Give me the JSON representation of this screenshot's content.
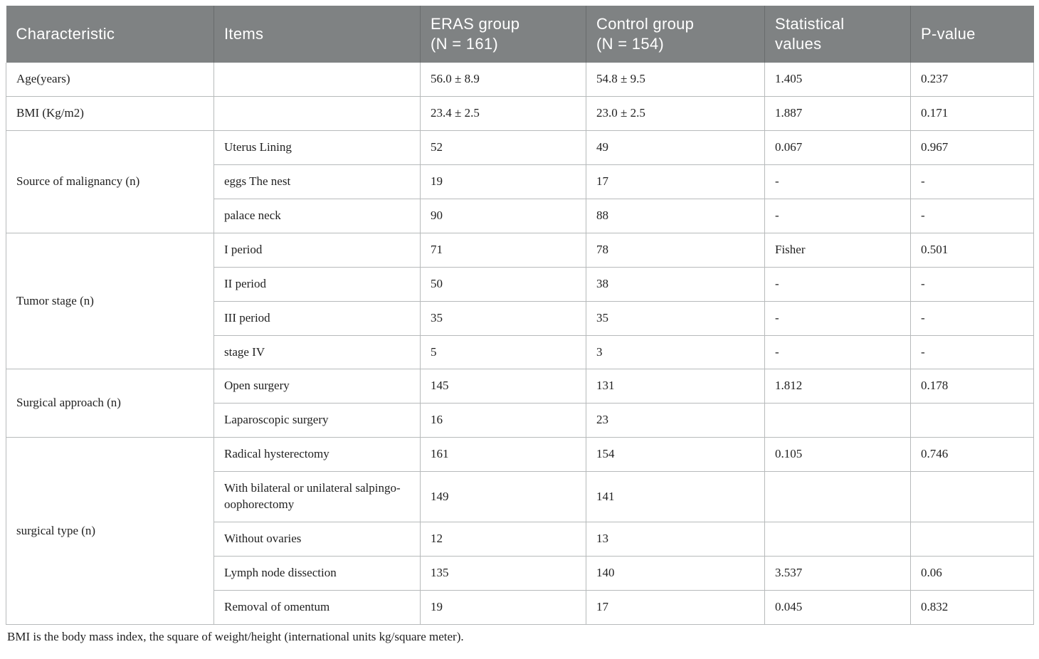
{
  "colors": {
    "header_bg": "#7f8283",
    "header_text": "#ffffff",
    "header_divider": "#696c6d",
    "border": "#b7babb",
    "body_text": "#1f1f1f"
  },
  "table": {
    "columns": [
      {
        "id": "characteristic",
        "lines": [
          "Characteristic"
        ]
      },
      {
        "id": "items",
        "lines": [
          "Items"
        ]
      },
      {
        "id": "eras",
        "lines": [
          "ERAS group",
          "(N = 161)"
        ]
      },
      {
        "id": "control",
        "lines": [
          "Control group",
          "(N = 154)"
        ]
      },
      {
        "id": "stat",
        "lines": [
          "Statistical",
          "values"
        ]
      },
      {
        "id": "p",
        "lines": [
          "P-value"
        ]
      }
    ],
    "groups": [
      {
        "characteristic": "Age(years)",
        "rows": [
          {
            "item": "",
            "eras": "56.0 ± 8.9",
            "control": "54.8 ± 9.5",
            "stat": "1.405",
            "p": "0.237"
          }
        ]
      },
      {
        "characteristic": "BMI (Kg/m2)",
        "rows": [
          {
            "item": "",
            "eras": "23.4 ± 2.5",
            "control": "23.0 ± 2.5",
            "stat": "1.887",
            "p": "0.171"
          }
        ]
      },
      {
        "characteristic": "Source of malignancy (n)",
        "rows": [
          {
            "item": "Uterus Lining",
            "eras": "52",
            "control": "49",
            "stat": "0.067",
            "p": "0.967"
          },
          {
            "item": "eggs The nest",
            "eras": "19",
            "control": "17",
            "stat": "-",
            "p": "-"
          },
          {
            "item": "palace neck",
            "eras": "90",
            "control": "88",
            "stat": "-",
            "p": "-"
          }
        ]
      },
      {
        "characteristic": "Tumor stage (n)",
        "rows": [
          {
            "item": "I period",
            "eras": "71",
            "control": "78",
            "stat": "Fisher",
            "p": "0.501"
          },
          {
            "item": "II period",
            "eras": "50",
            "control": "38",
            "stat": "-",
            "p": "-"
          },
          {
            "item": "III period",
            "eras": "35",
            "control": "35",
            "stat": "-",
            "p": "-"
          },
          {
            "item": "stage IV",
            "eras": "5",
            "control": "3",
            "stat": "-",
            "p": "-"
          }
        ]
      },
      {
        "characteristic": "Surgical approach (n)",
        "rows": [
          {
            "item": "Open surgery",
            "eras": "145",
            "control": "131",
            "stat": "1.812",
            "p": "0.178"
          },
          {
            "item": "Laparoscopic surgery",
            "eras": "16",
            "control": "23",
            "stat": "",
            "p": ""
          }
        ]
      },
      {
        "characteristic": "surgical type (n)",
        "rows": [
          {
            "item": "Radical hysterectomy",
            "eras": "161",
            "control": "154",
            "stat": "0.105",
            "p": "0.746"
          },
          {
            "item": "With bilateral or unilateral salpingo-oophorectomy",
            "eras": "149",
            "control": "141",
            "stat": "",
            "p": ""
          },
          {
            "item": "Without ovaries",
            "eras": "12",
            "control": "13",
            "stat": "",
            "p": ""
          },
          {
            "item": "Lymph node dissection",
            "eras": "135",
            "control": "140",
            "stat": "3.537",
            "p": "0.06"
          },
          {
            "item": "Removal of omentum",
            "eras": "19",
            "control": "17",
            "stat": "0.045",
            "p": "0.832"
          }
        ]
      }
    ]
  },
  "footnote": "BMI is the body mass index, the square of weight/height (international units kg/square meter)."
}
